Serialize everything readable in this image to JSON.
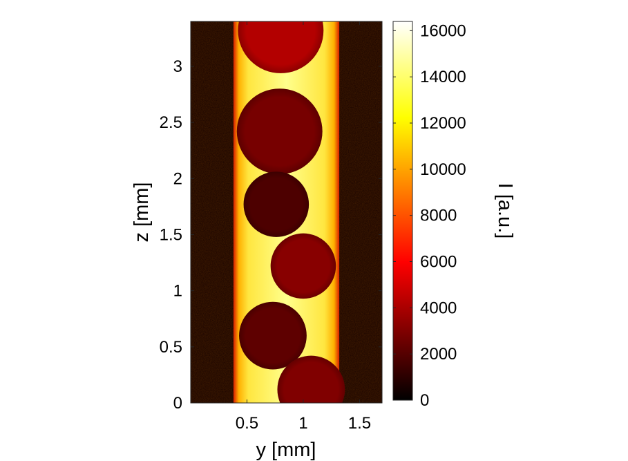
{
  "chart_data": {
    "type": "heatmap",
    "title": "",
    "xlabel": "y [mm]",
    "ylabel": "z [mm]",
    "colorbar_label": "I [a.u.]",
    "xlim": [
      0.0,
      1.7
    ],
    "ylim": [
      0.0,
      3.4
    ],
    "x_ticks": [
      {
        "value": 0.5,
        "label": "0.5"
      },
      {
        "value": 1.0,
        "label": "1"
      },
      {
        "value": 1.5,
        "label": "1.5"
      }
    ],
    "y_ticks": [
      {
        "value": 0,
        "label": "0"
      },
      {
        "value": 0.5,
        "label": "0.5"
      },
      {
        "value": 1,
        "label": "1"
      },
      {
        "value": 1.5,
        "label": "1.5"
      },
      {
        "value": 2,
        "label": "2"
      },
      {
        "value": 2.5,
        "label": "2.5"
      },
      {
        "value": 3,
        "label": "3"
      }
    ],
    "colorbar": {
      "colormap": "hot",
      "range": [
        0,
        16400
      ],
      "ticks": [
        {
          "value": 0,
          "label": "0"
        },
        {
          "value": 2000,
          "label": "2000"
        },
        {
          "value": 4000,
          "label": "4000"
        },
        {
          "value": 6000,
          "label": "6000"
        },
        {
          "value": 8000,
          "label": "8000"
        },
        {
          "value": 10000,
          "label": "10000"
        },
        {
          "value": 12000,
          "label": "12000"
        },
        {
          "value": 14000,
          "label": "14000"
        },
        {
          "value": 16000,
          "label": "16000"
        }
      ]
    },
    "channel": {
      "y_left": 0.38,
      "y_right": 1.32,
      "intensity_center": 15500,
      "intensity_wall": 6500,
      "intensity_outside": 700
    },
    "bubbles": [
      {
        "y_center": 0.8,
        "z_center": 3.32,
        "radius": 0.38,
        "intensity": 4200
      },
      {
        "y_center": 0.79,
        "z_center": 2.42,
        "radius": 0.38,
        "intensity": 2800
      },
      {
        "y_center": 0.76,
        "z_center": 1.77,
        "radius": 0.29,
        "intensity": 1800
      },
      {
        "y_center": 1.0,
        "z_center": 1.22,
        "radius": 0.29,
        "intensity": 3200
      },
      {
        "y_center": 0.73,
        "z_center": 0.6,
        "radius": 0.3,
        "intensity": 2200
      },
      {
        "y_center": 1.07,
        "z_center": 0.12,
        "radius": 0.3,
        "intensity": 3000
      }
    ]
  }
}
